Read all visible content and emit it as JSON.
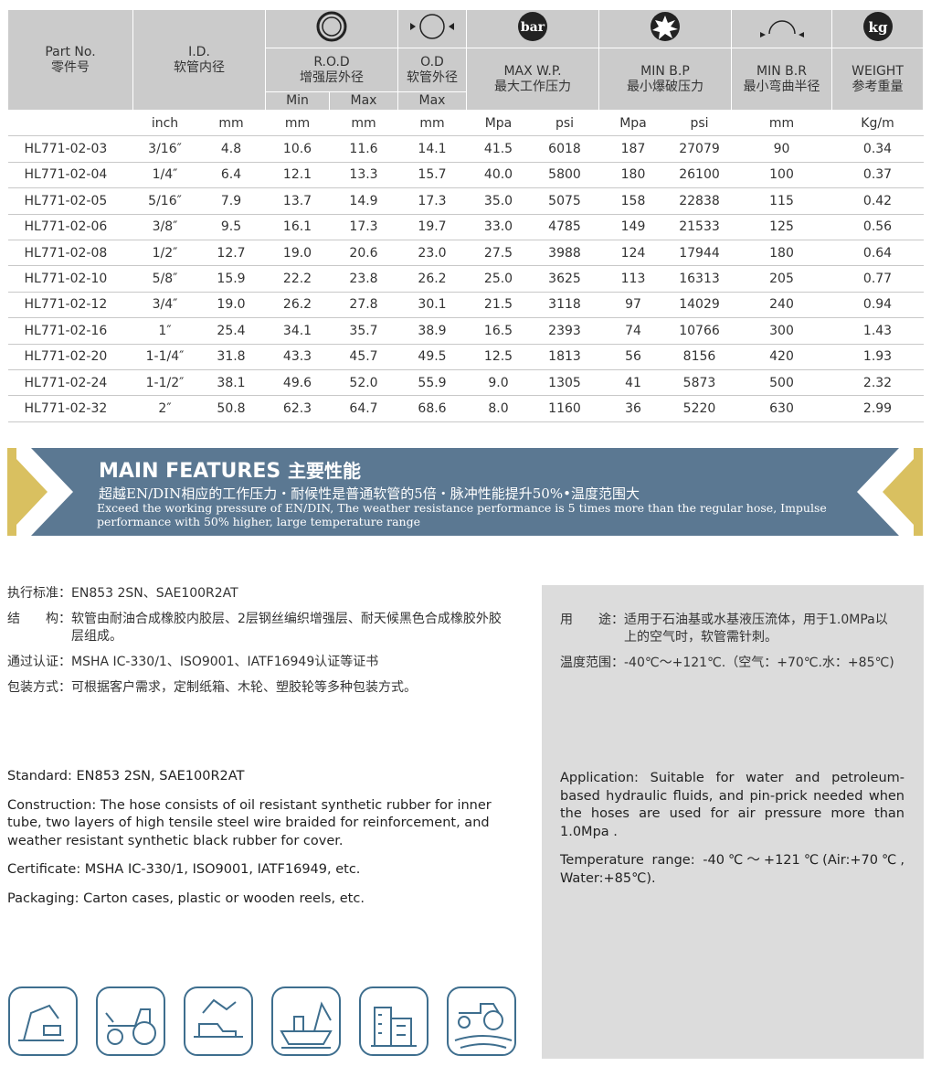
{
  "header": {
    "part_no": [
      "Part No.",
      "零件号"
    ],
    "id": [
      "I.D.",
      "软管内径"
    ],
    "rod": [
      "R.O.D",
      "增强层外径"
    ],
    "od": [
      "O.D",
      "软管外径"
    ],
    "wp": [
      "MAX W.P.",
      "最大工作压力"
    ],
    "bp": [
      "MIN B.P",
      "最小爆破压力"
    ],
    "br": [
      "MIN B.R",
      "最小弯曲半径"
    ],
    "weight": [
      "WEIGHT",
      "参考重量"
    ],
    "sub": [
      "Min",
      "Max",
      "Max"
    ],
    "bar_icon": "bar",
    "kg_icon": "kg"
  },
  "table": {
    "units": [
      "inch",
      "mm",
      "mm",
      "mm",
      "mm",
      "Mpa",
      "psi",
      "Mpa",
      "psi",
      "mm",
      "Kg/m"
    ],
    "rows": [
      [
        "HL771-02-03",
        "3/16″",
        "4.8",
        "10.6",
        "11.6",
        "14.1",
        "41.5",
        "6018",
        "187",
        "27079",
        "90",
        "0.34"
      ],
      [
        "HL771-02-04",
        "1/4″",
        "6.4",
        "12.1",
        "13.3",
        "15.7",
        "40.0",
        "5800",
        "180",
        "26100",
        "100",
        "0.37"
      ],
      [
        "HL771-02-05",
        "5/16″",
        "7.9",
        "13.7",
        "14.9",
        "17.3",
        "35.0",
        "5075",
        "158",
        "22838",
        "115",
        "0.42"
      ],
      [
        "HL771-02-06",
        "3/8″",
        "9.5",
        "16.1",
        "17.3",
        "19.7",
        "33.0",
        "4785",
        "149",
        "21533",
        "125",
        "0.56"
      ],
      [
        "HL771-02-08",
        "1/2″",
        "12.7",
        "19.0",
        "20.6",
        "23.0",
        "27.5",
        "3988",
        "124",
        "17944",
        "180",
        "0.64"
      ],
      [
        "HL771-02-10",
        "5/8″",
        "15.9",
        "22.2",
        "23.8",
        "26.2",
        "25.0",
        "3625",
        "113",
        "16313",
        "205",
        "0.77"
      ],
      [
        "HL771-02-12",
        "3/4″",
        "19.0",
        "26.2",
        "27.8",
        "30.1",
        "21.5",
        "3118",
        "97",
        "14029",
        "240",
        "0.94"
      ],
      [
        "HL771-02-16",
        "1″",
        "25.4",
        "34.1",
        "35.7",
        "38.9",
        "16.5",
        "2393",
        "74",
        "10766",
        "300",
        "1.43"
      ],
      [
        "HL771-02-20",
        "1-1/4″",
        "31.8",
        "43.3",
        "45.7",
        "49.5",
        "12.5",
        "1813",
        "56",
        "8156",
        "420",
        "1.93"
      ],
      [
        "HL771-02-24",
        "1-1/2″",
        "38.1",
        "49.6",
        "52.0",
        "55.9",
        "9.0",
        "1305",
        "41",
        "5873",
        "500",
        "2.32"
      ],
      [
        "HL771-02-32",
        "2″",
        "50.8",
        "62.3",
        "64.7",
        "68.6",
        "8.0",
        "1160",
        "36",
        "5220",
        "630",
        "2.99"
      ]
    ]
  },
  "banner": {
    "title": "MAIN FEATURES",
    "title_cn": "主要性能",
    "line_cn": "超越EN/DIN相应的工作压力・耐候性是普通软管的5倍・脉冲性能提升50%•温度范围大",
    "line_en": "Exceed the working pressure of EN/DIN, The weather resistance performance is 5 times more than the regular hose, Impulse performance with 50% higher, large temperature range"
  },
  "specs_cn": [
    {
      "label": "执行标准：",
      "text": "EN853 2SN、SAE100R2AT"
    },
    {
      "label": "结　　构：",
      "text": "软管由耐油合成橡胶内胶层、2层钢丝编织增强层、耐天候黑色合成橡胶外胶层组成。"
    },
    {
      "label": "通过认证：",
      "text": "MSHA IC-330/1、ISO9001、IATF16949认证等证书"
    },
    {
      "label": "包装方式：",
      "text": "可根据客户需求，定制纸箱、木轮、塑胶轮等多种包装方式。"
    }
  ],
  "panel_cn": [
    {
      "label": "用　　途：",
      "text": "适用于石油基或水基液压流体，用于1.0MPa以上的空气时，软管需针刺。"
    },
    {
      "label": "温度范围：",
      "text": "-40℃～+121℃.（空气：+70℃.水：+85℃)"
    }
  ],
  "specs_en": [
    "Standard: EN853 2SN, SAE100R2AT",
    "Construction: The hose consists of oil resistant synthetic rubber for inner tube, two layers of high tensile steel wire braided for reinforcement, and weather resistant synthetic black rubber for cover.",
    "Certificate: MSHA IC-330/1, ISO9001, IATF16949,  etc.",
    "Packaging: Carton cases, plastic or wooden reels, etc."
  ],
  "panel_en": [
    "Application: Suitable for water and petroleum-based hydraulic fluids, and pin-prick needed when the hoses are used for air pressure more than 1.0Mpa .",
    "Temperature range: -40℃～+121℃(Air:+70℃, Water:+85℃)."
  ]
}
